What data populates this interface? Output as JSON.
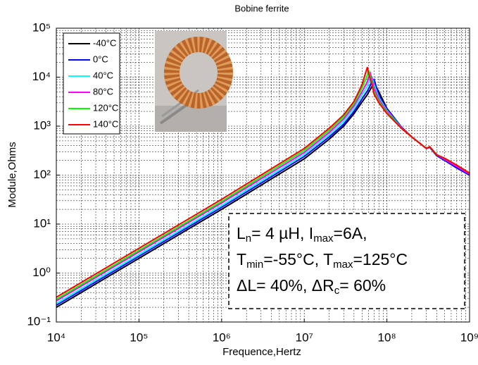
{
  "chart_data": {
    "type": "line",
    "title": "Bobine ferrite",
    "x_label": "Frequence,Hertz",
    "y_label": "Module,Ohms",
    "log_x": true,
    "log_y": true,
    "grid": true,
    "legend": "upper left",
    "xlim": [
      10000,
      1000000000
    ],
    "ylim": [
      0.1,
      100000
    ],
    "xticks": [
      {
        "value": 10000,
        "label": "10⁴"
      },
      {
        "value": 100000,
        "label": "10⁵"
      },
      {
        "value": 1000000,
        "label": "10⁶"
      },
      {
        "value": 10000000,
        "label": "10⁷"
      },
      {
        "value": 100000000,
        "label": "10⁸"
      },
      {
        "value": 1000000000,
        "label": "10⁹"
      }
    ],
    "yticks": [
      {
        "value": 0.1,
        "label": "10⁻¹"
      },
      {
        "value": 1,
        "label": "10⁰"
      },
      {
        "value": 10,
        "label": "10¹"
      },
      {
        "value": 100,
        "label": "10²"
      },
      {
        "value": 1000,
        "label": "10³"
      },
      {
        "value": 10000,
        "label": "10⁴"
      },
      {
        "value": 100000,
        "label": "10⁵"
      }
    ],
    "x": [
      10000,
      100000,
      1000000,
      10000000,
      20000000,
      30000000,
      40000000,
      50000000,
      58000000,
      60000000,
      63000000,
      66000000,
      70000000,
      80000000,
      100000000,
      150000000,
      200000000,
      300000000,
      330000000,
      400000000,
      500000000,
      700000000,
      1000000000
    ],
    "series": [
      {
        "name": "-40°C",
        "color": "#000000",
        "values": [
          0.2,
          2,
          20,
          215,
          540,
          1000,
          1800,
          3100,
          4400,
          4900,
          5600,
          6500,
          7500,
          5000,
          2300,
          960,
          600,
          350,
          370,
          250,
          200,
          140,
          100
        ]
      },
      {
        "name": "0°C",
        "color": "#0000ff",
        "values": [
          0.22,
          2.2,
          22,
          240,
          600,
          1100,
          2000,
          3600,
          5200,
          5800,
          6800,
          8500,
          9000,
          4200,
          2200,
          950,
          600,
          350,
          370,
          250,
          200,
          140,
          100
        ]
      },
      {
        "name": "40°C",
        "color": "#00ffff",
        "values": [
          0.24,
          2.4,
          24,
          265,
          670,
          1250,
          2300,
          4300,
          6500,
          7500,
          9500,
          10000,
          7000,
          3800,
          2100,
          930,
          600,
          350,
          380,
          260,
          210,
          150,
          105
        ]
      },
      {
        "name": "80°C",
        "color": "#ff00ff",
        "values": [
          0.27,
          2.7,
          27,
          290,
          740,
          1400,
          2600,
          5000,
          8000,
          10000,
          12000,
          9000,
          6000,
          3500,
          2000,
          920,
          600,
          350,
          380,
          260,
          210,
          150,
          105
        ]
      },
      {
        "name": "120°C",
        "color": "#00ff00",
        "values": [
          0.29,
          2.9,
          29,
          320,
          820,
          1550,
          2900,
          6000,
          11000,
          14000,
          10000,
          7500,
          5000,
          3200,
          1900,
          900,
          600,
          350,
          380,
          260,
          220,
          160,
          110
        ]
      },
      {
        "name": "140°C",
        "color": "#ff0000",
        "values": [
          0.32,
          3.2,
          32,
          350,
          900,
          1700,
          3200,
          7000,
          16000,
          12000,
          9000,
          7000,
          4500,
          3000,
          1800,
          900,
          600,
          350,
          380,
          260,
          220,
          160,
          110
        ]
      }
    ],
    "annotation": [
      [
        "L",
        "n",
        "= 4 µH, I",
        "max",
        "=6A,"
      ],
      [
        "T",
        "min",
        "=-55°C, T",
        "max",
        "=125°C"
      ],
      [
        "ΔL= 40%,  ΔR",
        "c",
        "= 60%"
      ]
    ]
  }
}
